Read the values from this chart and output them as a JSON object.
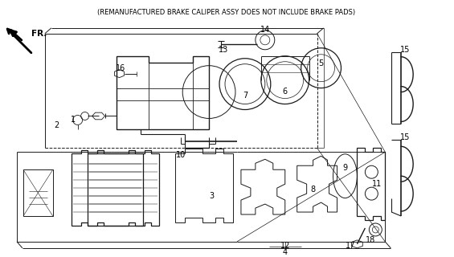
{
  "bg_color": "#ffffff",
  "line_color": "#1a1a1a",
  "text_color": "#000000",
  "footer_text": "(REMANUFACTURED BRAKE CALIPER ASSY DOES NOT INCLUDE BRAKE PADS)",
  "footer_fontsize": 6.0,
  "label_fontsize": 7.0,
  "figsize": [
    5.65,
    3.2
  ],
  "dpi": 100
}
